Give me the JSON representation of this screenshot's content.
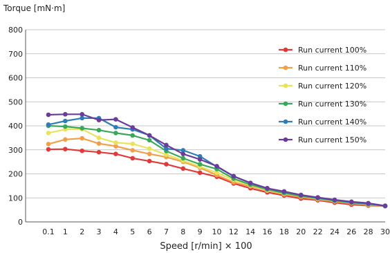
{
  "chart_data": {
    "type": "line",
    "title": "",
    "ylabel": "Torque [mN·m]",
    "xlabel": "Speed [r/min] × 100",
    "ylim": [
      0,
      800
    ],
    "yticks": [
      0,
      100,
      200,
      300,
      400,
      500,
      600,
      700,
      800
    ],
    "grid": true,
    "legend_position": "top-right",
    "categories": [
      "0.1",
      "1",
      "2",
      "3",
      "4",
      "5",
      "6",
      "7",
      "8",
      "9",
      "10",
      "12",
      "14",
      "16",
      "18",
      "20",
      "22",
      "24",
      "26",
      "28",
      "30"
    ],
    "series": [
      {
        "name": "Run current 100%",
        "color": "#e03a3a",
        "values": [
          302,
          303,
          296,
          290,
          283,
          265,
          253,
          240,
          222,
          205,
          188,
          160,
          140,
          123,
          110,
          97,
          90,
          80,
          72,
          68,
          66
        ]
      },
      {
        "name": "Run current 110%",
        "color": "#f0a04b",
        "values": [
          324,
          343,
          348,
          326,
          315,
          298,
          283,
          270,
          250,
          225,
          195,
          165,
          148,
          130,
          115,
          103,
          94,
          85,
          77,
          70,
          65
        ]
      },
      {
        "name": "Run current 120%",
        "color": "#e8e45a",
        "values": [
          370,
          385,
          386,
          350,
          330,
          325,
          305,
          280,
          255,
          230,
          205,
          175,
          152,
          132,
          118,
          108,
          96,
          87,
          80,
          74,
          67
        ]
      },
      {
        "name": "Run current 130%",
        "color": "#3aa85a",
        "values": [
          400,
          397,
          390,
          382,
          370,
          360,
          340,
          295,
          265,
          240,
          220,
          180,
          155,
          135,
          120,
          108,
          98,
          88,
          80,
          74,
          67
        ]
      },
      {
        "name": "Run current 140%",
        "color": "#2e7db5",
        "values": [
          405,
          420,
          432,
          432,
          394,
          385,
          360,
          305,
          298,
          273,
          230,
          190,
          162,
          140,
          125,
          112,
          100,
          90,
          82,
          76,
          66
        ]
      },
      {
        "name": "Run current 150%",
        "color": "#6a3d9a",
        "values": [
          446,
          448,
          448,
          424,
          427,
          393,
          360,
          320,
          283,
          260,
          232,
          190,
          162,
          140,
          127,
          112,
          102,
          92,
          84,
          78,
          67
        ]
      }
    ]
  }
}
